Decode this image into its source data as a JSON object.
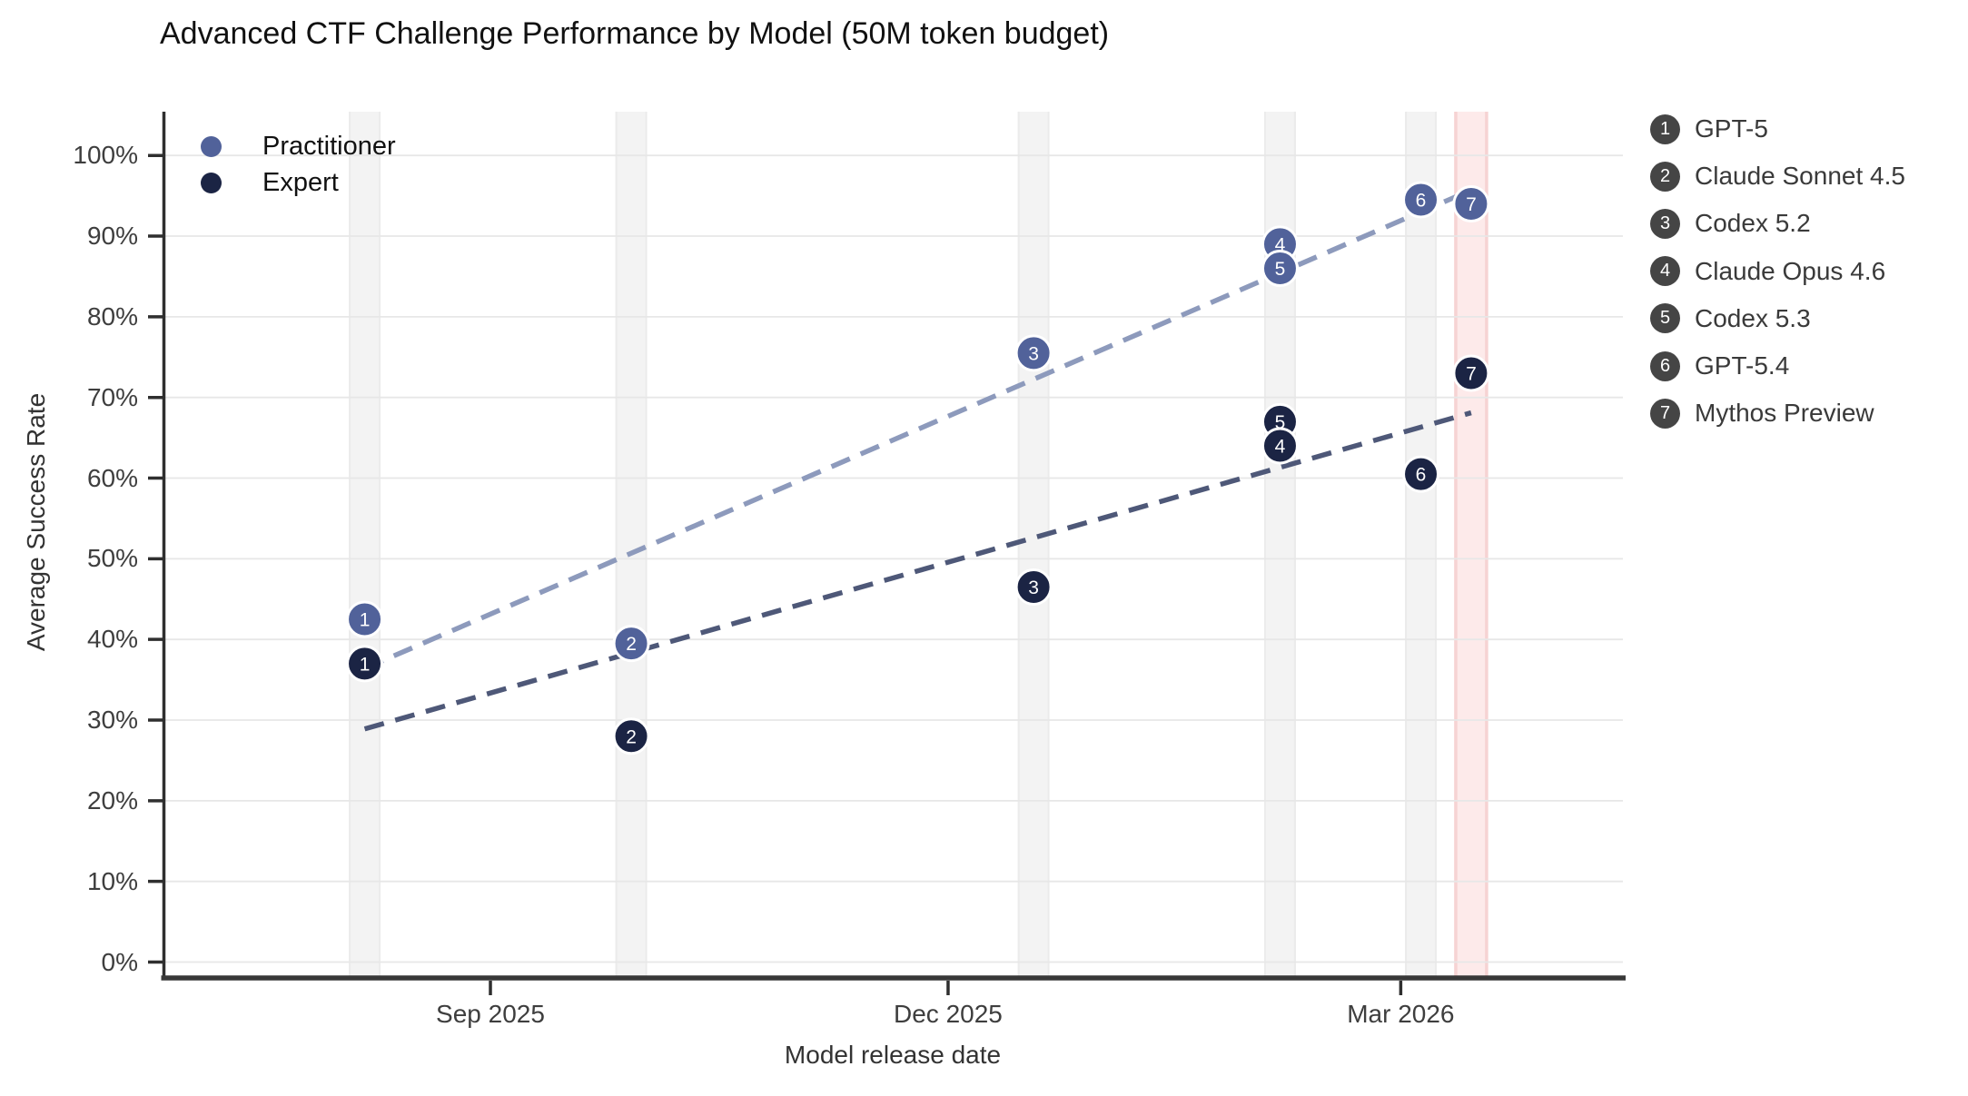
{
  "title": "Advanced CTF Challenge Performance by Model (50M token budget)",
  "axes": {
    "xlabel": "Model release date",
    "ylabel": "Average Success Rate",
    "x_tick_labels": [
      "Sep 2025",
      "Dec 2025",
      "Mar 2026"
    ],
    "y_tick_labels": [
      "0%",
      "10%",
      "20%",
      "30%",
      "40%",
      "50%",
      "60%",
      "70%",
      "80%",
      "90%",
      "100%"
    ]
  },
  "series_legend": [
    {
      "label": "Practitioner",
      "color": "#51629a"
    },
    {
      "label": "Expert",
      "color": "#1b2444"
    }
  ],
  "model_legend": {
    "badge_color": "#454545",
    "items": [
      {
        "num": "1",
        "label": "GPT-5"
      },
      {
        "num": "2",
        "label": "Claude Sonnet 4.5"
      },
      {
        "num": "3",
        "label": "Codex 5.2"
      },
      {
        "num": "4",
        "label": "Claude Opus 4.6"
      },
      {
        "num": "5",
        "label": "Codex 5.3"
      },
      {
        "num": "6",
        "label": "GPT-5.4"
      },
      {
        "num": "7",
        "label": "Mythos Preview"
      }
    ]
  },
  "chart_data": {
    "type": "scatter",
    "title": "Advanced CTF Challenge Performance by Model (50M token budget)",
    "xlabel": "Model release date",
    "ylabel": "Average Success Rate",
    "x_axis": {
      "tick_dates": [
        "2025-09-01",
        "2025-12-01",
        "2026-03-01"
      ],
      "tick_labels": [
        "Sep 2025",
        "Dec 2025",
        "Mar 2026"
      ]
    },
    "y_axis": {
      "min": 0,
      "max": 105,
      "tick_step": 10,
      "unit": "%"
    },
    "grid": true,
    "legend_position": "top-left-inside",
    "series": [
      {
        "name": "Practitioner",
        "color": "#51629a",
        "trend_color": "#8d9abc"
      },
      {
        "name": "Expert",
        "color": "#1b2444",
        "trend_color": "#4e5878"
      }
    ],
    "models": [
      {
        "num": 1,
        "name": "GPT-5",
        "release_date_est": "2025-08-07",
        "practitioner_pct": 42.5,
        "expert_pct": 37
      },
      {
        "num": 2,
        "name": "Claude Sonnet 4.5",
        "release_date_est": "2025-09-29",
        "practitioner_pct": 39.5,
        "expert_pct": 28
      },
      {
        "num": 3,
        "name": "Codex 5.2",
        "release_date_est": "2025-12-18",
        "practitioner_pct": 75.5,
        "expert_pct": 46.5
      },
      {
        "num": 4,
        "name": "Claude Opus 4.6",
        "release_date_est": "2026-02-05",
        "practitioner_pct": 89,
        "expert_pct": 64
      },
      {
        "num": 5,
        "name": "Codex 5.3",
        "release_date_est": "2026-02-05",
        "practitioner_pct": 86,
        "expert_pct": 67
      },
      {
        "num": 6,
        "name": "GPT-5.4",
        "release_date_est": "2026-03-05",
        "practitioner_pct": 94.5,
        "expert_pct": 60.5
      },
      {
        "num": 7,
        "name": "Mythos Preview",
        "release_date_est": "2026-03-15",
        "practitioner_pct": 94,
        "expert_pct": 73
      }
    ],
    "trendlines": [
      {
        "series": "Practitioner",
        "style": "dashed",
        "start_date": "2025-08-07",
        "start_pct": 36.4,
        "end_date": "2026-03-15",
        "end_pct": 95.7
      },
      {
        "series": "Expert",
        "style": "dashed",
        "start_date": "2025-08-07",
        "start_pct": 28.9,
        "end_date": "2026-03-15",
        "end_pct": 68.1
      }
    ],
    "release_bands": {
      "gray_fill": "#f3f3f3",
      "gray_edge": "#ebebeb",
      "highlight_fill": "#fdeaea",
      "highlight_edge": "#f6d3d3",
      "highlight_model": 7
    }
  }
}
